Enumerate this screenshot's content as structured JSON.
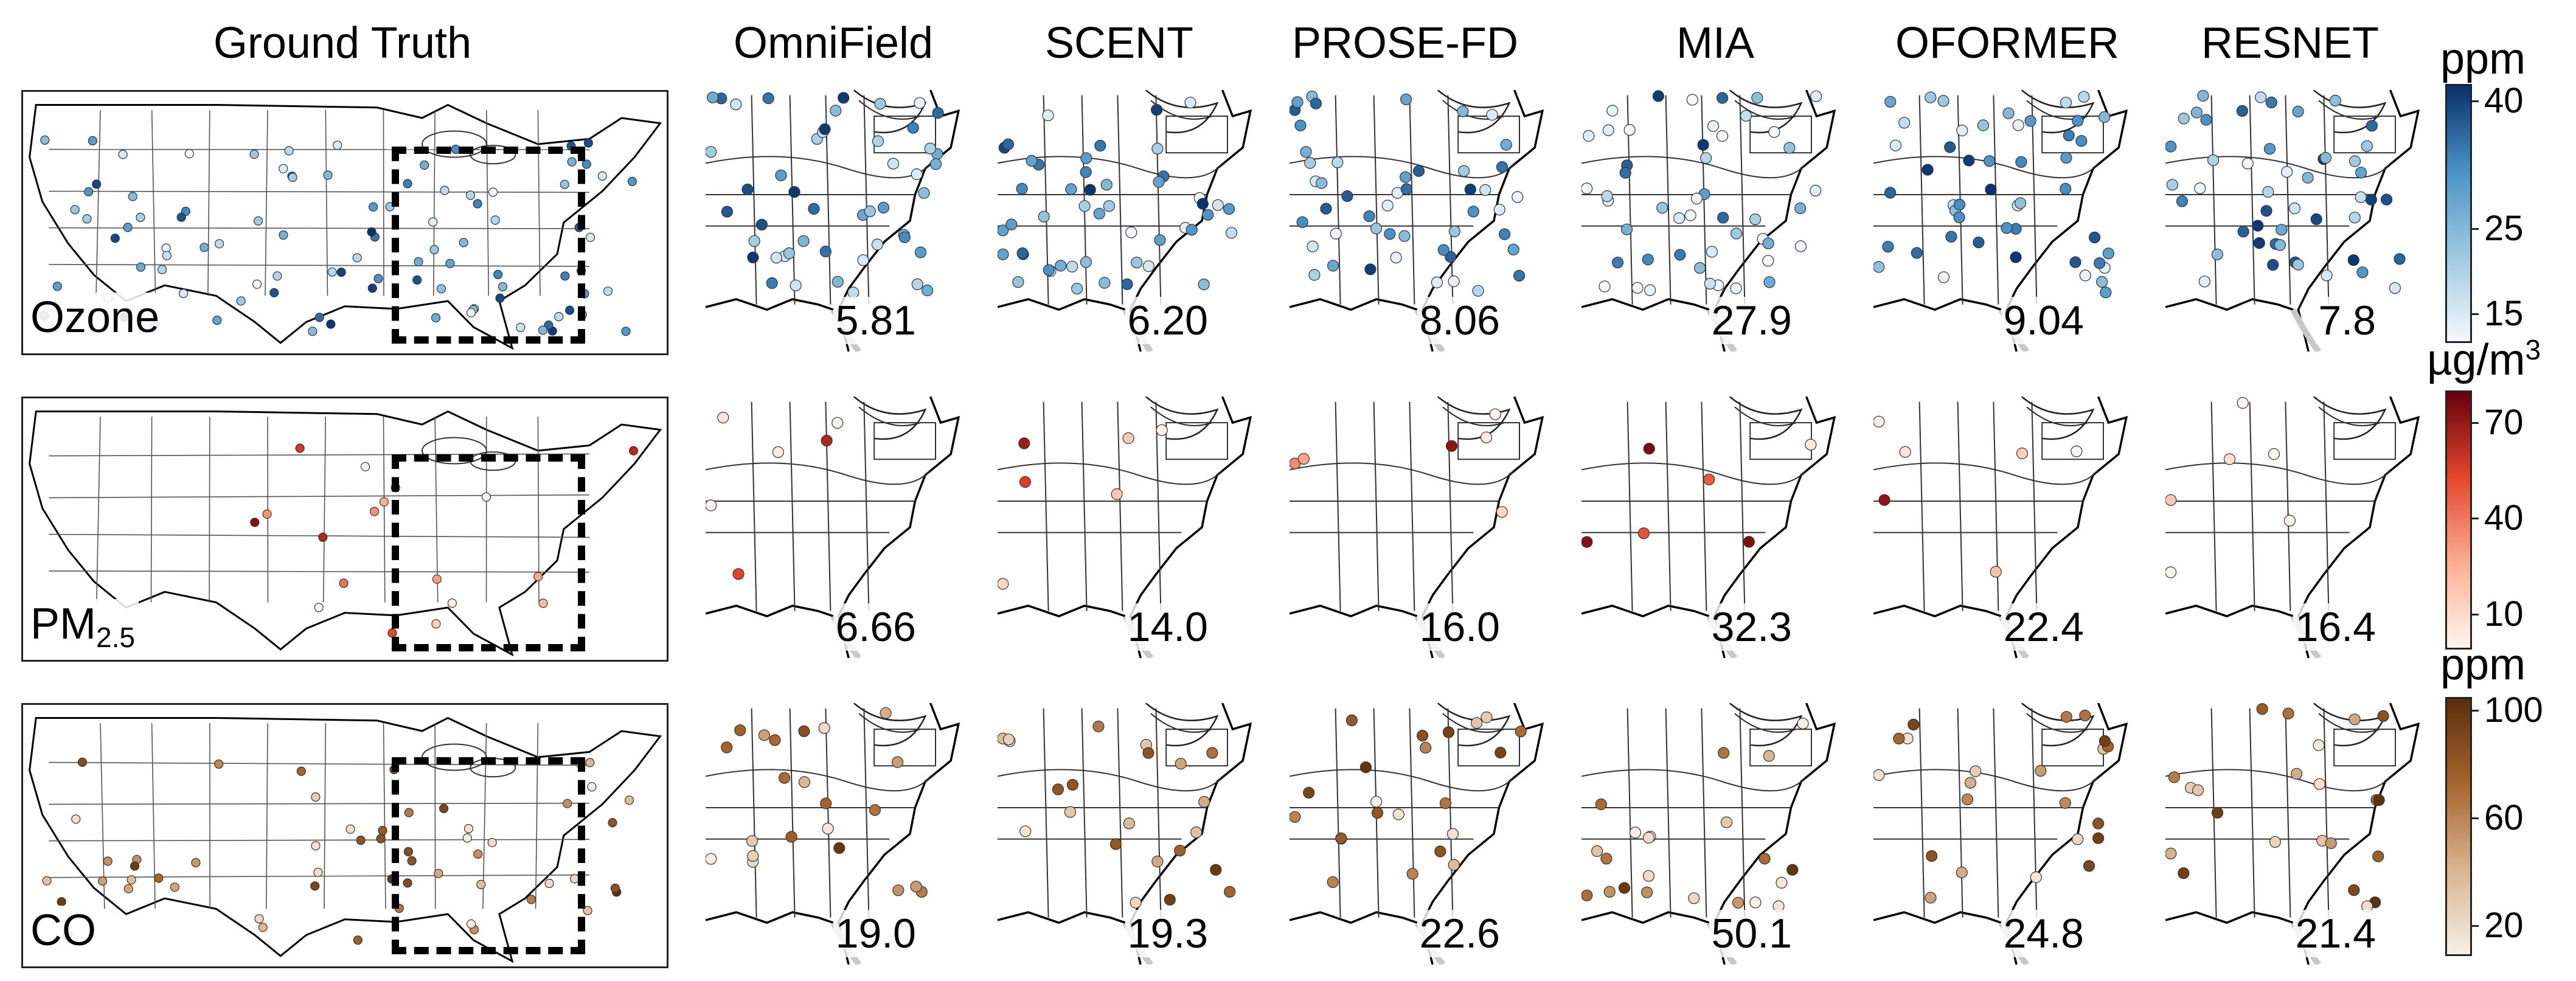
{
  "columns": [
    "Ground Truth",
    "OmniField",
    "SCENT",
    "PROSE-FD",
    "MIA",
    "OFORMER",
    "RESNET"
  ],
  "rows": [
    {
      "id": "ozone",
      "label": "Ozone",
      "label_sub": "",
      "unit": "ppm",
      "unit_sup": "",
      "colormap": [
        "#f4f8fc",
        "#9ecae1",
        "#4a92c6",
        "#08306b"
      ],
      "ticks": [
        "40",
        "25",
        "15"
      ],
      "tick_values": [
        40,
        25,
        15
      ],
      "range": [
        12,
        42
      ],
      "scores": [
        "5.81",
        "6.20",
        "8.06",
        "27.9",
        "9.04",
        "7.8"
      ]
    },
    {
      "id": "pm25",
      "label": "PM",
      "label_sub": "2.5",
      "unit": "µg/m",
      "unit_sup": "3",
      "colormap": [
        "#fff5f0",
        "#fcae91",
        "#e3462c",
        "#67000d"
      ],
      "ticks": [
        "70",
        "40",
        "10"
      ],
      "tick_values": [
        70,
        40,
        10
      ],
      "range": [
        0,
        80
      ],
      "scores": [
        "6.66",
        "14.0",
        "16.0",
        "32.3",
        "22.4",
        "16.4"
      ]
    },
    {
      "id": "co",
      "label": "CO",
      "label_sub": "",
      "unit": "ppm",
      "unit_sup": "",
      "colormap": [
        "#f6efe6",
        "#d9b48f",
        "#a6652e",
        "#5a2f0c"
      ],
      "ticks": [
        "100",
        "60",
        "20"
      ],
      "tick_values": [
        100,
        60,
        20
      ],
      "range": [
        10,
        105
      ],
      "scores": [
        "19.0",
        "19.3",
        "22.6",
        "50.1",
        "24.8",
        "21.4"
      ]
    }
  ]
}
